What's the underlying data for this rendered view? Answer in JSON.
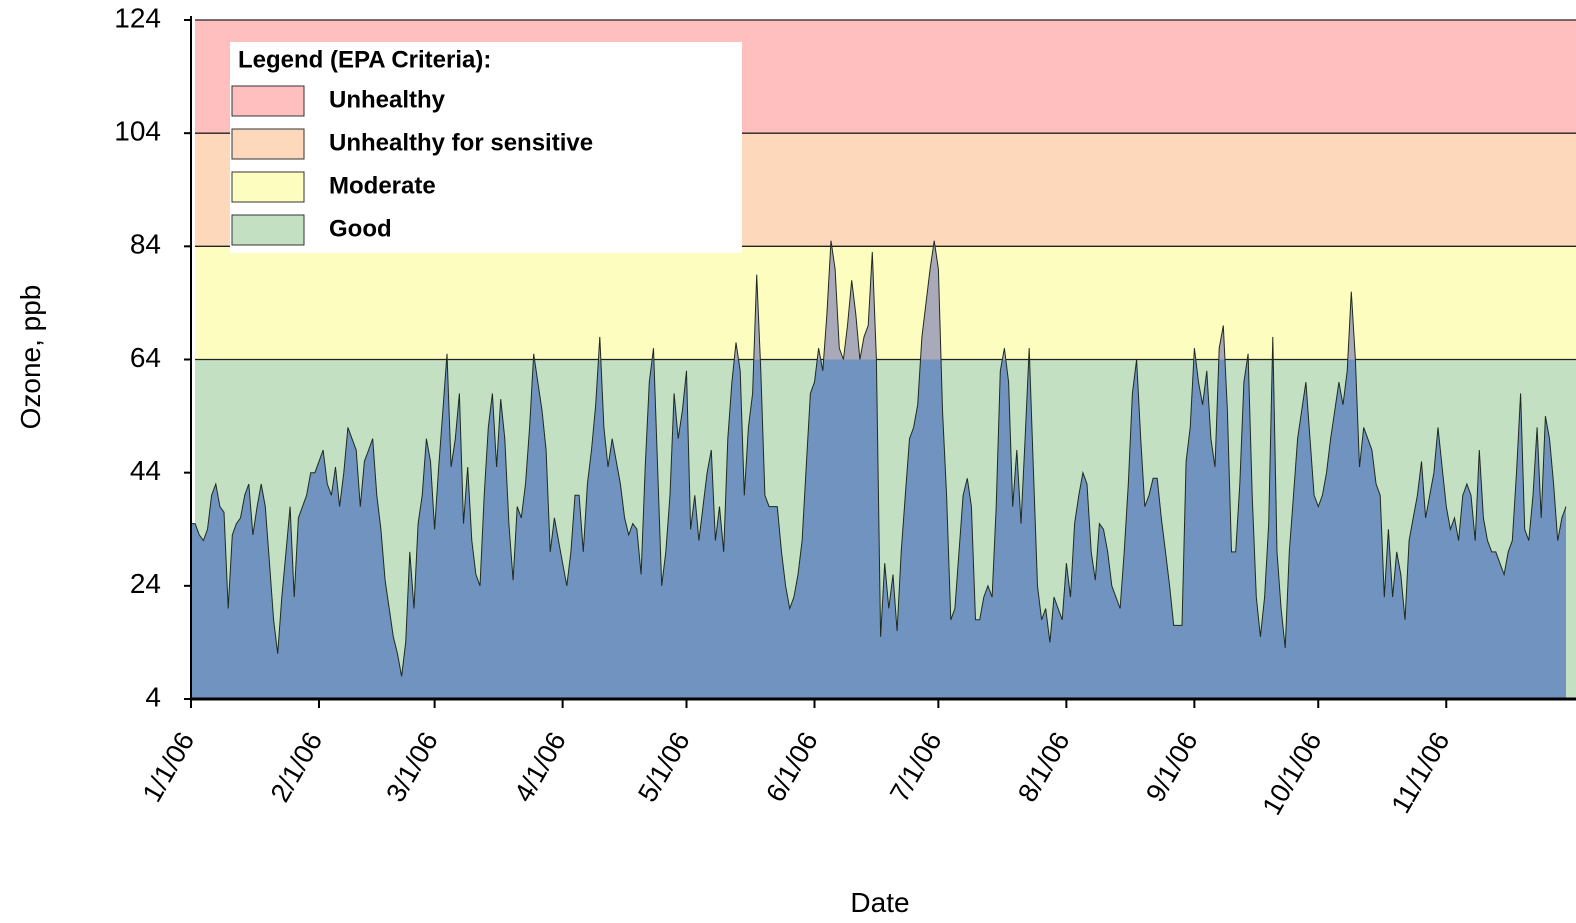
{
  "chart_data": {
    "type": "area",
    "xlabel": "Date",
    "ylabel": "Ozone, ppb",
    "legend_title": "Legend (EPA Criteria):",
    "legend": "upper left",
    "bands": [
      {
        "name": "Unhealthy",
        "color": "#ffbfbf",
        "from": 104,
        "to": 124
      },
      {
        "name": "Unhealthy for sensitive",
        "color": "#fdd8bb",
        "from": 84,
        "to": 104
      },
      {
        "name": "Moderate",
        "color": "#fdfdc0",
        "from": 64,
        "to": 84
      },
      {
        "name": "Good",
        "color": "#c3e0c3",
        "from": 4,
        "to": 64
      }
    ],
    "color": "#7093c0",
    "exceed_color": "#a9a9ba",
    "ylim": [
      4,
      124
    ],
    "yticks": [
      4,
      24,
      44,
      64,
      84,
      104,
      124
    ],
    "xlim": [
      "2006-01-01",
      "2006-11-30"
    ],
    "xticks": [
      {
        "value": "2006-01-01",
        "label": "1/1/06"
      },
      {
        "value": "2006-02-01",
        "label": "2/1/06"
      },
      {
        "value": "2006-03-01",
        "label": "3/1/06"
      },
      {
        "value": "2006-04-01",
        "label": "4/1/06"
      },
      {
        "value": "2006-05-01",
        "label": "5/1/06"
      },
      {
        "value": "2006-06-01",
        "label": "6/1/06"
      },
      {
        "value": "2006-07-01",
        "label": "7/1/06"
      },
      {
        "value": "2006-08-01",
        "label": "8/1/06"
      },
      {
        "value": "2006-09-01",
        "label": "9/1/06"
      },
      {
        "value": "2006-10-01",
        "label": "10/1/06"
      },
      {
        "value": "2006-11-01",
        "label": "11/1/06"
      }
    ],
    "x": [
      "2006-01-01",
      "2006-01-02",
      "2006-01-03",
      "2006-01-04",
      "2006-01-05",
      "2006-01-06",
      "2006-01-07",
      "2006-01-08",
      "2006-01-09",
      "2006-01-10",
      "2006-01-11",
      "2006-01-12",
      "2006-01-13",
      "2006-01-14",
      "2006-01-15",
      "2006-01-16",
      "2006-01-17",
      "2006-01-18",
      "2006-01-19",
      "2006-01-20",
      "2006-01-21",
      "2006-01-22",
      "2006-01-23",
      "2006-01-24",
      "2006-01-25",
      "2006-01-26",
      "2006-01-27",
      "2006-01-28",
      "2006-01-29",
      "2006-01-30",
      "2006-01-31",
      "2006-02-01",
      "2006-02-02",
      "2006-02-03",
      "2006-02-04",
      "2006-02-05",
      "2006-02-06",
      "2006-02-07",
      "2006-02-08",
      "2006-02-09",
      "2006-02-10",
      "2006-02-11",
      "2006-02-12",
      "2006-02-13",
      "2006-02-14",
      "2006-02-15",
      "2006-02-16",
      "2006-02-17",
      "2006-02-18",
      "2006-02-19",
      "2006-02-20",
      "2006-02-21",
      "2006-02-22",
      "2006-02-23",
      "2006-02-24",
      "2006-02-25",
      "2006-02-26",
      "2006-02-27",
      "2006-02-28",
      "2006-03-01",
      "2006-03-02",
      "2006-03-03",
      "2006-03-04",
      "2006-03-05",
      "2006-03-06",
      "2006-03-07",
      "2006-03-08",
      "2006-03-09",
      "2006-03-10",
      "2006-03-11",
      "2006-03-12",
      "2006-03-13",
      "2006-03-14",
      "2006-03-15",
      "2006-03-16",
      "2006-03-17",
      "2006-03-18",
      "2006-03-19",
      "2006-03-20",
      "2006-03-21",
      "2006-03-22",
      "2006-03-23",
      "2006-03-24",
      "2006-03-25",
      "2006-03-26",
      "2006-03-27",
      "2006-03-28",
      "2006-03-29",
      "2006-03-30",
      "2006-03-31",
      "2006-04-01",
      "2006-04-02",
      "2006-04-03",
      "2006-04-04",
      "2006-04-05",
      "2006-04-06",
      "2006-04-07",
      "2006-04-08",
      "2006-04-09",
      "2006-04-10",
      "2006-04-11",
      "2006-04-12",
      "2006-04-13",
      "2006-04-14",
      "2006-04-15",
      "2006-04-16",
      "2006-04-17",
      "2006-04-18",
      "2006-04-19",
      "2006-04-20",
      "2006-04-21",
      "2006-04-22",
      "2006-04-23",
      "2006-04-24",
      "2006-04-25",
      "2006-04-26",
      "2006-04-27",
      "2006-04-28",
      "2006-04-29",
      "2006-04-30",
      "2006-05-01",
      "2006-05-02",
      "2006-05-03",
      "2006-05-04",
      "2006-05-05",
      "2006-05-06",
      "2006-05-07",
      "2006-05-08",
      "2006-05-09",
      "2006-05-10",
      "2006-05-11",
      "2006-05-12",
      "2006-05-13",
      "2006-05-14",
      "2006-05-15",
      "2006-05-16",
      "2006-05-17",
      "2006-05-18",
      "2006-05-19",
      "2006-05-20",
      "2006-05-21",
      "2006-05-22",
      "2006-05-23",
      "2006-05-24",
      "2006-05-25",
      "2006-05-26",
      "2006-05-27",
      "2006-05-28",
      "2006-05-29",
      "2006-05-30",
      "2006-05-31",
      "2006-06-01",
      "2006-06-02",
      "2006-06-03",
      "2006-06-04",
      "2006-06-05",
      "2006-06-06",
      "2006-06-07",
      "2006-06-08",
      "2006-06-09",
      "2006-06-10",
      "2006-06-11",
      "2006-06-12",
      "2006-06-13",
      "2006-06-14",
      "2006-06-15",
      "2006-06-16",
      "2006-06-17",
      "2006-06-18",
      "2006-06-19",
      "2006-06-20",
      "2006-06-21",
      "2006-06-22",
      "2006-06-23",
      "2006-06-24",
      "2006-06-25",
      "2006-06-26",
      "2006-06-27",
      "2006-06-28",
      "2006-06-29",
      "2006-06-30",
      "2006-07-01",
      "2006-07-02",
      "2006-07-03",
      "2006-07-04",
      "2006-07-05",
      "2006-07-06",
      "2006-07-07",
      "2006-07-08",
      "2006-07-09",
      "2006-07-10",
      "2006-07-11",
      "2006-07-12",
      "2006-07-13",
      "2006-07-14",
      "2006-07-15",
      "2006-07-16",
      "2006-07-17",
      "2006-07-18",
      "2006-07-19",
      "2006-07-20",
      "2006-07-21",
      "2006-07-22",
      "2006-07-23",
      "2006-07-24",
      "2006-07-25",
      "2006-07-26",
      "2006-07-27",
      "2006-07-28",
      "2006-07-29",
      "2006-07-30",
      "2006-07-31",
      "2006-08-01",
      "2006-08-02",
      "2006-08-03",
      "2006-08-04",
      "2006-08-05",
      "2006-08-06",
      "2006-08-07",
      "2006-08-08",
      "2006-08-09",
      "2006-08-10",
      "2006-08-11",
      "2006-08-12",
      "2006-08-13",
      "2006-08-14",
      "2006-08-15",
      "2006-08-16",
      "2006-08-17",
      "2006-08-18",
      "2006-08-19",
      "2006-08-20",
      "2006-08-21",
      "2006-08-22",
      "2006-08-23",
      "2006-08-24",
      "2006-08-25",
      "2006-08-26",
      "2006-08-27",
      "2006-08-28",
      "2006-08-29",
      "2006-08-30",
      "2006-08-31",
      "2006-09-01",
      "2006-09-02",
      "2006-09-03",
      "2006-09-04",
      "2006-09-05",
      "2006-09-06",
      "2006-09-07",
      "2006-09-08",
      "2006-09-09",
      "2006-09-10",
      "2006-09-11",
      "2006-09-12",
      "2006-09-13",
      "2006-09-14",
      "2006-09-15",
      "2006-09-16",
      "2006-09-17",
      "2006-09-18",
      "2006-09-19",
      "2006-09-20",
      "2006-09-21",
      "2006-09-22",
      "2006-09-23",
      "2006-09-24",
      "2006-09-25",
      "2006-09-26",
      "2006-09-27",
      "2006-09-28",
      "2006-09-29",
      "2006-09-30",
      "2006-10-01",
      "2006-10-02",
      "2006-10-03",
      "2006-10-04",
      "2006-10-05",
      "2006-10-06",
      "2006-10-07",
      "2006-10-08",
      "2006-10-09",
      "2006-10-10",
      "2006-10-11",
      "2006-10-12",
      "2006-10-13",
      "2006-10-14",
      "2006-10-15",
      "2006-10-16",
      "2006-10-17",
      "2006-10-18",
      "2006-10-19",
      "2006-10-20",
      "2006-10-21",
      "2006-10-22",
      "2006-10-23",
      "2006-10-24",
      "2006-10-25",
      "2006-10-26",
      "2006-10-27",
      "2006-10-28",
      "2006-10-29",
      "2006-10-30",
      "2006-10-31",
      "2006-11-01",
      "2006-11-02",
      "2006-11-03",
      "2006-11-04",
      "2006-11-05",
      "2006-11-06",
      "2006-11-07",
      "2006-11-08",
      "2006-11-09",
      "2006-11-10",
      "2006-11-11",
      "2006-11-12",
      "2006-11-13",
      "2006-11-14",
      "2006-11-15",
      "2006-11-16",
      "2006-11-17",
      "2006-11-18",
      "2006-11-19",
      "2006-11-20",
      "2006-11-21",
      "2006-11-22",
      "2006-11-23",
      "2006-11-24",
      "2006-11-25",
      "2006-11-26",
      "2006-11-27",
      "2006-11-28",
      "2006-11-29",
      "2006-11-30"
    ],
    "values": [
      35,
      35,
      33,
      32,
      34,
      40,
      42,
      38,
      37,
      20,
      33,
      35,
      36,
      40,
      42,
      33,
      38,
      42,
      38,
      28,
      18,
      12,
      22,
      30,
      38,
      22,
      36,
      38,
      40,
      44,
      44,
      46,
      48,
      42,
      40,
      45,
      38,
      44,
      52,
      50,
      48,
      38,
      46,
      48,
      50,
      40,
      34,
      25,
      20,
      15,
      12,
      8,
      14,
      30,
      20,
      35,
      40,
      50,
      46,
      34,
      45,
      55,
      65,
      45,
      50,
      58,
      35,
      45,
      32,
      26,
      24,
      40,
      52,
      58,
      45,
      57,
      50,
      35,
      25,
      38,
      36,
      42,
      52,
      65,
      60,
      55,
      48,
      30,
      36,
      32,
      28,
      24,
      30,
      40,
      40,
      30,
      42,
      48,
      56,
      68,
      52,
      45,
      50,
      46,
      42,
      36,
      33,
      35,
      34,
      26,
      45,
      60,
      66,
      45,
      24,
      30,
      40,
      58,
      50,
      55,
      62,
      34,
      40,
      32,
      38,
      44,
      48,
      32,
      38,
      30,
      50,
      60,
      67,
      62,
      40,
      52,
      58,
      79,
      62,
      40,
      38,
      38,
      38,
      30,
      24,
      20,
      22,
      26,
      32,
      45,
      58,
      60,
      66,
      62,
      72,
      85,
      80,
      66,
      64,
      70,
      78,
      72,
      64,
      68,
      70,
      83,
      64,
      15,
      28,
      20,
      26,
      16,
      30,
      40,
      50,
      52,
      56,
      68,
      74,
      80,
      85,
      80,
      55,
      40,
      18,
      20,
      30,
      40,
      43,
      38,
      18,
      18,
      22,
      24,
      22,
      38,
      62,
      66,
      60,
      38,
      48,
      35,
      50,
      66,
      45,
      24,
      18,
      20,
      14,
      22,
      20,
      18,
      28,
      22,
      35,
      40,
      44,
      42,
      30,
      25,
      35,
      34,
      30,
      24,
      22,
      20,
      30,
      42,
      58,
      64,
      50,
      38,
      40,
      43,
      43,
      36,
      30,
      24,
      17,
      17,
      17,
      46,
      52,
      66,
      60,
      56,
      62,
      50,
      45,
      66,
      70,
      55,
      30,
      30,
      42,
      60,
      65,
      40,
      22,
      15,
      22,
      35,
      68,
      30,
      20,
      13,
      30,
      40,
      50,
      55,
      60,
      50,
      40,
      38,
      40,
      44,
      50,
      55,
      60,
      56,
      62,
      76,
      64,
      45,
      52,
      50,
      48,
      42,
      40,
      22,
      34,
      22,
      30,
      26,
      18,
      32,
      36,
      40,
      46,
      36,
      40,
      44,
      52,
      45,
      38,
      34,
      36,
      32,
      40,
      42,
      40,
      32,
      48,
      36,
      32,
      30,
      30,
      28,
      26,
      30,
      32,
      44,
      58,
      34,
      32,
      40,
      52,
      36,
      54,
      50,
      42,
      32,
      36,
      38
    ]
  }
}
